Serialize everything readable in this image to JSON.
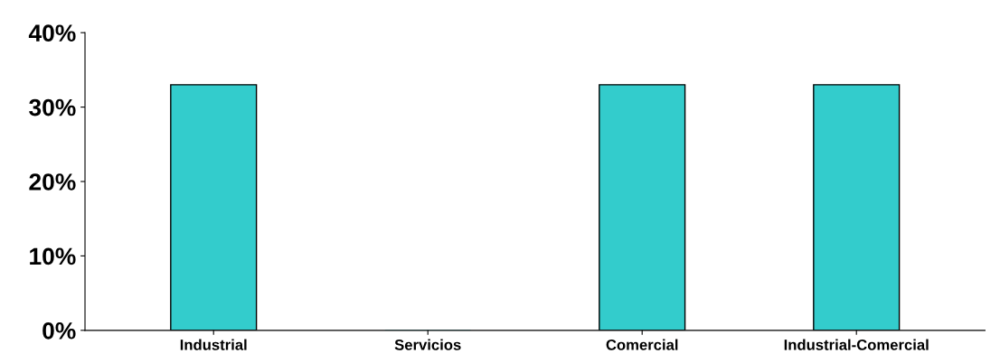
{
  "chart_data": {
    "type": "bar",
    "categories": [
      "Industrial",
      "Servicios",
      "Comercial",
      "Industrial-Comercial"
    ],
    "values": [
      33,
      0,
      33,
      33
    ],
    "color": "#33cccc",
    "ylim": [
      0,
      40
    ],
    "yticks": [
      {
        "value": 0,
        "label": "0%"
      },
      {
        "value": 10,
        "label": "10%"
      },
      {
        "value": 20,
        "label": "20%"
      },
      {
        "value": 30,
        "label": "30%"
      },
      {
        "value": 40,
        "label": "40%"
      }
    ],
    "grid": false
  }
}
